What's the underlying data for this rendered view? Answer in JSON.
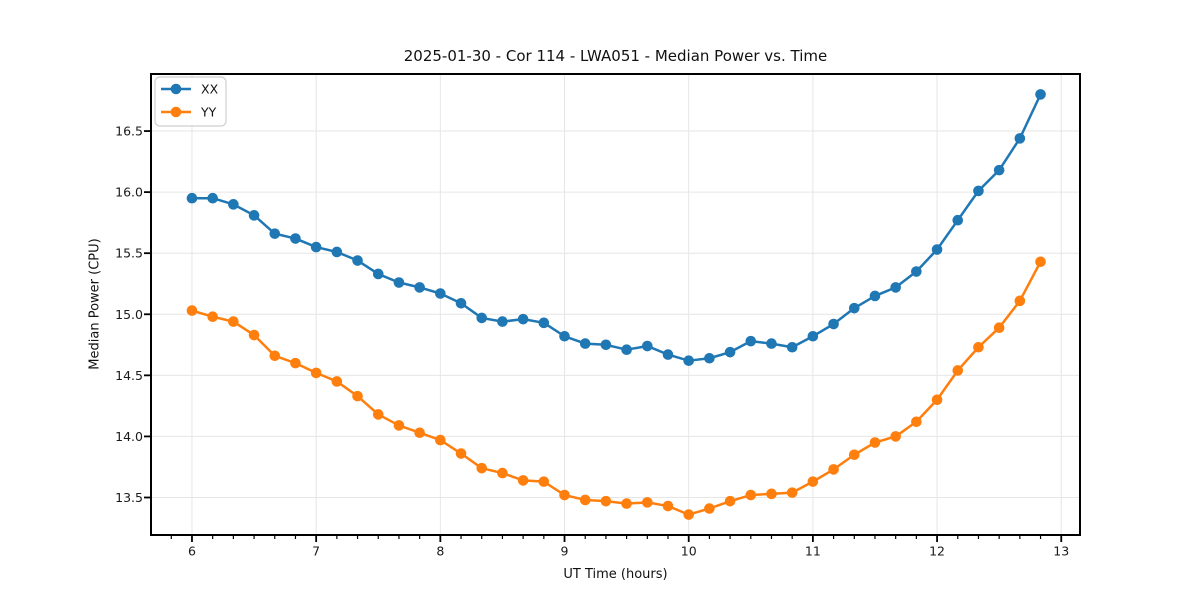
{
  "chart_data": {
    "type": "line",
    "title": "2025-01-30 - Cor 114 - LWA051 - Median Power vs. Time",
    "xlabel": "UT Time (hours)",
    "ylabel": "Median Power (CPU)",
    "x": [
      6.0,
      6.1667,
      6.3333,
      6.5,
      6.6667,
      6.8333,
      7.0,
      7.1667,
      7.3333,
      7.5,
      7.6667,
      7.8333,
      8.0,
      8.1667,
      8.3333,
      8.5,
      8.6667,
      8.8333,
      9.0,
      9.1667,
      9.3333,
      9.5,
      9.6667,
      9.8333,
      10.0,
      10.1667,
      10.3333,
      10.5,
      10.6667,
      10.8333,
      11.0,
      11.1667,
      11.3333,
      11.5,
      11.6667,
      11.8333,
      12.0,
      12.1667,
      12.3333,
      12.5,
      12.6667,
      12.8333
    ],
    "series": [
      {
        "name": "XX",
        "color": "#1f77b4",
        "values": [
          15.95,
          15.95,
          15.9,
          15.81,
          15.66,
          15.62,
          15.55,
          15.51,
          15.44,
          15.33,
          15.26,
          15.22,
          15.17,
          15.09,
          14.97,
          14.94,
          14.96,
          14.93,
          14.82,
          14.76,
          14.75,
          14.71,
          14.74,
          14.67,
          14.62,
          14.64,
          14.69,
          14.78,
          14.76,
          14.73,
          14.82,
          14.92,
          15.05,
          15.15,
          15.22,
          15.35,
          15.53,
          15.77,
          16.01,
          16.18,
          16.44,
          16.8
        ]
      },
      {
        "name": "YY",
        "color": "#ff7f0e",
        "values": [
          15.03,
          14.98,
          14.94,
          14.83,
          14.66,
          14.6,
          14.52,
          14.45,
          14.33,
          14.18,
          14.09,
          14.03,
          13.97,
          13.86,
          13.74,
          13.7,
          13.64,
          13.63,
          13.52,
          13.48,
          13.47,
          13.45,
          13.46,
          13.43,
          13.36,
          13.41,
          13.47,
          13.52,
          13.53,
          13.54,
          13.63,
          13.73,
          13.85,
          13.95,
          14.0,
          14.12,
          14.3,
          14.54,
          14.73,
          14.89,
          15.11,
          15.43
        ]
      }
    ],
    "xlim": [
      5.67,
      13.151
    ],
    "ylim": [
      13.193,
      16.967
    ],
    "x_major_ticks": [
      6,
      7,
      8,
      9,
      10,
      11,
      12,
      13
    ],
    "x_minor_step": 0.16667,
    "y_ticks": [
      13.5,
      14.0,
      14.5,
      15.0,
      15.5,
      16.0,
      16.5
    ],
    "grid": true,
    "legend_position": "upper left"
  },
  "styles": {
    "grid_color": "#e6e6e6",
    "spine_color": "#000000",
    "tick_label_color": "#1a1a1a",
    "legend_border_color": "#cfcfcf",
    "background": "#ffffff"
  }
}
